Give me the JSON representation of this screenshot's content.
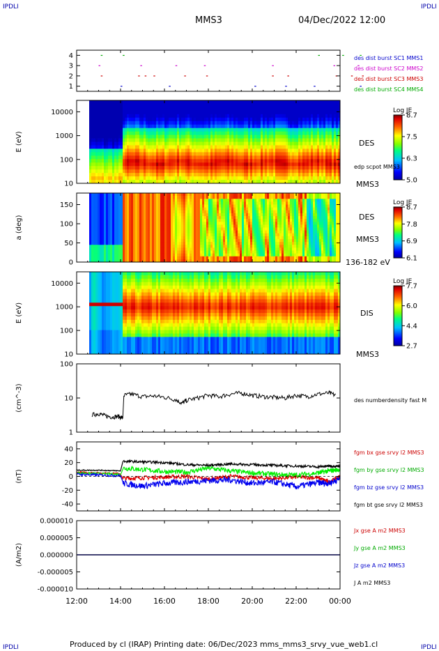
{
  "header": {
    "corner_left": "IPDLI",
    "corner_right": "IPDLI",
    "spacecraft": "MMS3",
    "datetime": "04/Dec/2022 12:00"
  },
  "footer": {
    "text": "Produced by cl (IRAP)   Printing date: 06/Dec/2023   mms_mms3_srvy_vue_web1.cl",
    "corner_left": "IPDLI",
    "corner_right": "IPDLI"
  },
  "x_axis": {
    "ticks": [
      "12:00",
      "14:00",
      "16:00",
      "18:00",
      "20:00",
      "22:00",
      "00:00"
    ]
  },
  "panels": {
    "burst": {
      "yticks": [
        "4",
        "3",
        "2",
        "1"
      ],
      "legend": [
        {
          "text": "des dist burst SC1 MMS1",
          "color": "#0000cc"
        },
        {
          "text": "des dist burst SC2 MMS2",
          "color": "#cc00cc"
        },
        {
          "text": "des dist burst SC3 MMS3",
          "color": "#cc0000"
        },
        {
          "text": "des dist burst SC4 MMS4",
          "color": "#00aa00"
        }
      ]
    },
    "des_energy": {
      "ylabel": "E (eV)",
      "yticks": [
        "10000",
        "1000",
        "100",
        "10"
      ],
      "label_top": "DES",
      "label_mid": "edp scpot MMS3",
      "label_bottom": "MMS3",
      "colorbar": {
        "title": "Log JE",
        "ticks": [
          "8.7",
          "7.5",
          "6.3",
          "5.0"
        ]
      }
    },
    "des_pitch": {
      "ylabel": "a (deg)",
      "yticks": [
        "150",
        "100",
        "50",
        "0"
      ],
      "label_top": "DES",
      "label_mid": "MMS3",
      "label_bottom": "136-182 eV",
      "colorbar": {
        "title": "Log JE",
        "ticks": [
          "8.7",
          "7.8",
          "6.9",
          "6.1"
        ]
      }
    },
    "dis_energy": {
      "ylabel": "E (eV)",
      "yticks": [
        "10000",
        "1000",
        "100",
        "10"
      ],
      "label_top": "DIS",
      "label_bottom": "MMS3",
      "colorbar": {
        "title": "Log JE",
        "ticks": [
          "7.7",
          "6.0",
          "4.4",
          "2.7"
        ]
      }
    },
    "density": {
      "ylabel": "(cm^-3)",
      "yticks": [
        "100",
        "10",
        "1"
      ],
      "legend": [
        {
          "text": "des numberdensity fast M",
          "color": "#000000"
        }
      ]
    },
    "bfield": {
      "ylabel": "(nT)",
      "yticks": [
        "40",
        "20",
        "0",
        "-20",
        "-40"
      ],
      "legend": [
        {
          "text": "fgm bx gse srvy l2 MMS3",
          "color": "#cc0000"
        },
        {
          "text": "fgm by gse srvy l2 MMS3",
          "color": "#00aa00"
        },
        {
          "text": "fgm bz gse srvy l2 MMS3",
          "color": "#0000cc"
        },
        {
          "text": "fgm bt gse srvy l2 MMS3",
          "color": "#000000"
        }
      ]
    },
    "current": {
      "ylabel": "(A/m2)",
      "yticks": [
        "0.000010",
        "0.000005",
        "0.000000",
        "-0.000005",
        "-0.000010"
      ],
      "legend": [
        {
          "text": "Jx gse A m2 MMS3",
          "color": "#cc0000"
        },
        {
          "text": "Jy gse A m2 MMS3",
          "color": "#00aa00"
        },
        {
          "text": "Jz gse A m2 MMS3",
          "color": "#0000cc"
        },
        {
          "text": "J A m2 MMS3",
          "color": "#000000"
        }
      ]
    }
  },
  "chart_data": [
    {
      "type": "scatter",
      "name": "burst_intervals",
      "x_unit": "hours since 12:00 UT",
      "y_range": [
        0.5,
        4.5
      ],
      "series": [
        {
          "name": "des dist burst SC1 MMS1",
          "y": 1,
          "x": [
            2.0,
            4.2,
            8.1,
            9.5,
            10.8,
            12.9
          ]
        },
        {
          "name": "des dist burst SC2 MMS2",
          "y": 3,
          "x": [
            1.0,
            2.9,
            4.5,
            5.8,
            8.9,
            11.7,
            12.8
          ]
        },
        {
          "name": "des dist burst SC3 MMS3",
          "y": 2,
          "x": [
            1.1,
            2.8,
            3.1,
            3.5,
            4.9,
            5.9,
            8.9,
            9.6,
            11.8,
            12.5,
            13.0
          ]
        },
        {
          "name": "des dist burst SC4 MMS4",
          "y": 4,
          "x": [
            1.1,
            2.1,
            11.0,
            12.1,
            12.9
          ]
        }
      ]
    },
    {
      "type": "heatmap",
      "name": "des_energy_spectrogram",
      "x_range": [
        0,
        12
      ],
      "y_scale": "log",
      "y_range": [
        10,
        30000
      ],
      "z_range": [
        5.0,
        8.7
      ],
      "z_label": "Log JE",
      "peak_energy_eV": [
        {
          "x": [
            0.6,
            2.1
          ],
          "value": 20
        },
        {
          "x": [
            2.1,
            12
          ],
          "value": 70
        }
      ]
    },
    {
      "type": "heatmap",
      "name": "des_pitch_angle",
      "x_range": [
        0,
        12
      ],
      "y_range": [
        0,
        180
      ],
      "z_range": [
        6.1,
        8.7
      ],
      "z_label": "Log JE",
      "energy_range_eV": "136-182"
    },
    {
      "type": "heatmap",
      "name": "dis_energy_spectrogram",
      "x_range": [
        0,
        12
      ],
      "y_scale": "log",
      "y_range": [
        10,
        30000
      ],
      "z_range": [
        2.7,
        7.7
      ],
      "z_label": "Log JE",
      "peak_energy_eV": [
        {
          "x": [
            0.6,
            2.1
          ],
          "value": 1400
        },
        {
          "x": [
            2.1,
            12
          ],
          "value": 1000
        }
      ]
    },
    {
      "type": "line",
      "name": "electron_density",
      "y_scale": "log",
      "y_range": [
        1,
        100
      ],
      "ylabel": "(cm^-3)",
      "series": [
        {
          "name": "des numberdensity fast M",
          "x": [
            0.7,
            1.0,
            1.3,
            1.6,
            1.9,
            2.1,
            2.15,
            2.5,
            3.0,
            3.5,
            4.0,
            4.5,
            4.8,
            5.0,
            5.5,
            6.0,
            6.5,
            7.0,
            7.5,
            8.0,
            8.5,
            9.0,
            9.5,
            10.0,
            10.5,
            11.0,
            11.5,
            11.8,
            12.0
          ],
          "y": [
            3.2,
            3.5,
            3.0,
            2.8,
            2.9,
            2.6,
            12,
            13,
            11,
            11.5,
            10.5,
            9.0,
            7.0,
            8.5,
            10,
            12,
            11,
            13,
            14,
            12,
            11,
            10.5,
            10,
            12,
            11,
            13,
            14,
            12,
            10
          ]
        }
      ]
    },
    {
      "type": "line",
      "name": "magnetic_field",
      "y_range": [
        -50,
        50
      ],
      "ylabel": "(nT)",
      "x": [
        0,
        1,
        2,
        2.1,
        3,
        4,
        5,
        6,
        7,
        8,
        9,
        10,
        11,
        11.5,
        12
      ],
      "series": [
        {
          "name": "fgm bx gse srvy l2 MMS3",
          "values": [
            6,
            5,
            4,
            -3,
            -2,
            -1,
            0,
            -4,
            0,
            -2,
            -3,
            -1,
            -2,
            -8,
            0
          ]
        },
        {
          "name": "fgm by gse srvy l2 MMS3",
          "values": [
            5,
            4,
            3,
            12,
            10,
            7,
            6,
            12,
            8,
            5,
            3,
            2,
            5,
            8,
            10
          ]
        },
        {
          "name": "fgm bz gse srvy l2 MMS3",
          "values": [
            3,
            2,
            1,
            -10,
            -14,
            -10,
            -8,
            -6,
            -5,
            -10,
            -8,
            -15,
            -9,
            -10,
            -3
          ]
        },
        {
          "name": "fgm bt gse srvy l2 MMS3",
          "values": [
            9,
            9,
            8,
            22,
            21,
            20,
            17,
            16,
            18,
            17,
            16,
            15,
            14,
            15,
            15
          ]
        }
      ]
    },
    {
      "type": "line",
      "name": "current_density",
      "y_range": [
        -1e-05,
        1e-05
      ],
      "ylabel": "(A/m2)",
      "x": [
        0,
        12
      ],
      "series": [
        {
          "name": "Jx gse A m2 MMS3",
          "values": [
            0,
            0
          ]
        },
        {
          "name": "Jy gse A m2 MMS3",
          "values": [
            0,
            0
          ]
        },
        {
          "name": "Jz gse A m2 MMS3",
          "values": [
            0,
            0
          ]
        },
        {
          "name": "J A m2 MMS3",
          "values": [
            0,
            0
          ]
        }
      ]
    }
  ]
}
